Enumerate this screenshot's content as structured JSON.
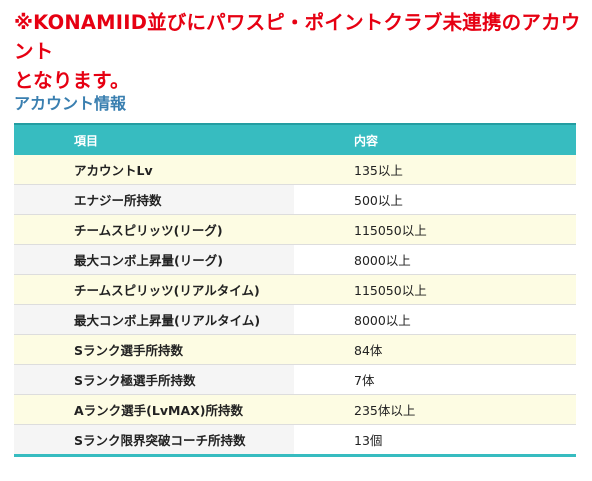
{
  "notice": {
    "line1": "※KONAMIID並びにパワスピ・ポイントクラブ未連携のアカウント",
    "line2": "となります。"
  },
  "section": {
    "title": "アカウント情報"
  },
  "table": {
    "headers": {
      "item": "項目",
      "value": "内容"
    },
    "rows": [
      {
        "label": "アカウントLv",
        "value": "135以上"
      },
      {
        "label": "エナジー所持数",
        "value": "500以上"
      },
      {
        "label": "チームスピリッツ(リーグ)",
        "value": "115050以上"
      },
      {
        "label": "最大コンボ上昇量(リーグ)",
        "value": "8000以上"
      },
      {
        "label": "チームスピリッツ(リアルタイム)",
        "value": "115050以上"
      },
      {
        "label": "最大コンボ上昇量(リアルタイム)",
        "value": "8000以上"
      },
      {
        "label": "Sランク選手所持数",
        "value": "84体"
      },
      {
        "label": "Sランク極選手所持数",
        "value": "7体"
      },
      {
        "label": "Aランク選手(LvMAX)所持数",
        "value": "235体以上"
      },
      {
        "label": "Sランク限界突破コーチ所持数",
        "value": "13個"
      }
    ]
  },
  "colors": {
    "notice": "#e60012",
    "section_title": "#3a7fb0",
    "header_bg": "#37bcc0",
    "alt_row_bg": "#fdfce3"
  }
}
